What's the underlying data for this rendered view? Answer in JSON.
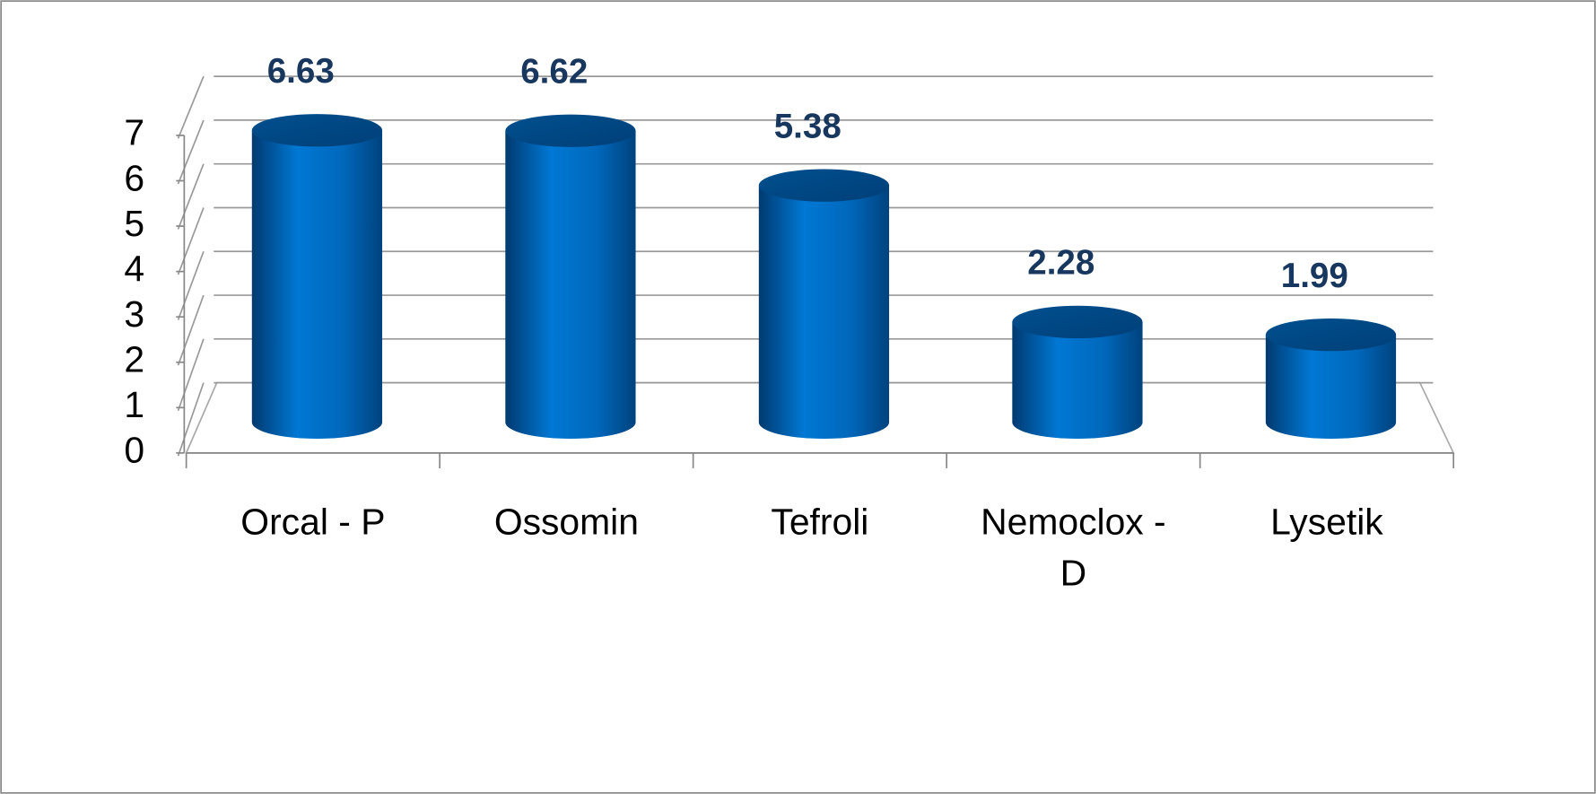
{
  "chart_data": {
    "type": "bar",
    "categories": [
      "Orcal - P",
      "Ossomin",
      "Tefroli",
      "Nemoclox - D",
      "Lysetik"
    ],
    "values": [
      6.63,
      6.62,
      5.38,
      2.28,
      1.99
    ],
    "color": "#0070c8",
    "ylim": [
      0,
      7
    ],
    "yticks": [
      0,
      1,
      2,
      3,
      4,
      5,
      6,
      7
    ],
    "grid": true
  }
}
